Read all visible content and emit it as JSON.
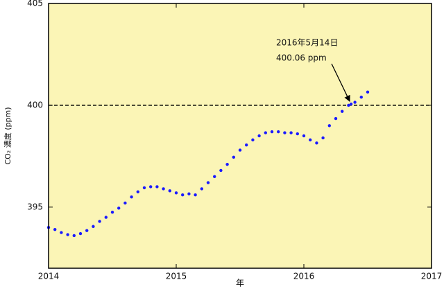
{
  "chart_data": {
    "type": "scatter",
    "y_label": "CO₂ 濃度 (ppm)",
    "x_label": "年",
    "xlim": [
      2014,
      2017
    ],
    "xticks": [
      2014,
      2015,
      2016,
      2017
    ],
    "ylim": [
      392,
      405
    ],
    "yticks": [
      395,
      400,
      405
    ],
    "hline": 400,
    "color": "#1a1aff",
    "background": "#fbf5b6",
    "x": [
      2014.0,
      2014.05,
      2014.1,
      2014.15,
      2014.2,
      2014.25,
      2014.3,
      2014.35,
      2014.4,
      2014.45,
      2014.5,
      2014.55,
      2014.6,
      2014.65,
      2014.7,
      2014.75,
      2014.8,
      2014.85,
      2014.9,
      2014.95,
      2015.0,
      2015.05,
      2015.1,
      2015.15,
      2015.2,
      2015.25,
      2015.3,
      2015.35,
      2015.4,
      2015.45,
      2015.5,
      2015.55,
      2015.6,
      2015.65,
      2015.7,
      2015.75,
      2015.8,
      2015.85,
      2015.9,
      2015.95,
      2016.0,
      2016.05,
      2016.1,
      2016.15,
      2016.2,
      2016.25,
      2016.3,
      2016.35,
      2016.37,
      2016.4,
      2016.45,
      2016.5
    ],
    "values": [
      394.0,
      393.9,
      393.75,
      393.65,
      393.6,
      393.7,
      393.85,
      394.05,
      394.3,
      394.5,
      394.75,
      394.95,
      395.2,
      395.5,
      395.75,
      395.95,
      396.0,
      396.0,
      395.9,
      395.8,
      395.7,
      395.6,
      395.65,
      395.6,
      395.9,
      396.2,
      396.5,
      396.8,
      397.1,
      397.45,
      397.8,
      398.05,
      398.3,
      398.5,
      398.65,
      398.7,
      398.7,
      398.65,
      398.65,
      398.6,
      398.5,
      398.3,
      398.15,
      398.4,
      399.0,
      399.35,
      399.7,
      400.0,
      400.06,
      400.15,
      400.4,
      400.65
    ],
    "annotation": {
      "text": [
        "2016年5月14日",
        "400.06 ppm"
      ],
      "x": 2016.37,
      "y": 400.06
    }
  }
}
